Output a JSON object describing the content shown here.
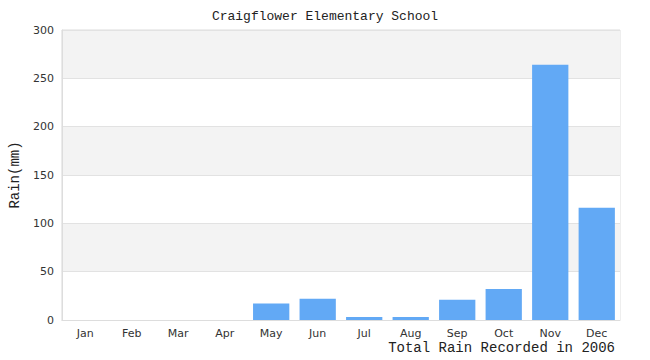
{
  "chart_data": {
    "type": "bar",
    "title": "Craigflower Elementary School",
    "xlabel": "Total Rain Recorded in 2006",
    "ylabel": "Rain(mm)",
    "categories": [
      "Jan",
      "Feb",
      "Mar",
      "Apr",
      "May",
      "Jun",
      "Jul",
      "Aug",
      "Sep",
      "Oct",
      "Nov",
      "Dec"
    ],
    "values": [
      0,
      0,
      0,
      0,
      17,
      22,
      3,
      3,
      21,
      32,
      264,
      116
    ],
    "color": "#62a9f5",
    "ylim": [
      0,
      300
    ],
    "yticks": [
      0,
      50,
      100,
      150,
      200,
      250,
      300
    ],
    "grid": true
  }
}
